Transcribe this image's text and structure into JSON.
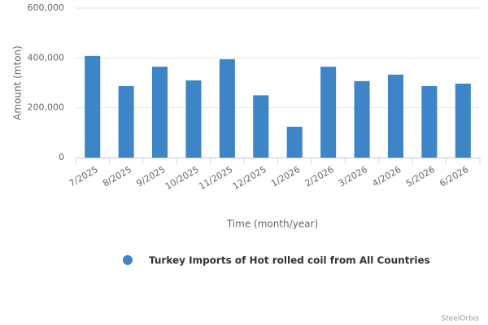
{
  "chart_data": {
    "type": "bar",
    "y_label": "Amount (mton)",
    "x_label": "Time (month/year)",
    "credit": "SteelOrbis",
    "categories": [
      "7/2025",
      "8/2025",
      "9/2025",
      "10/2025",
      "11/2025",
      "12/2025",
      "1/2026",
      "2/2026",
      "3/2026",
      "4/2026",
      "5/2026",
      "6/2026"
    ],
    "series": [
      {
        "name": "Turkey Imports of Hot rolled coil from All Countries",
        "color": "#3d85c6",
        "values": [
          408000,
          287000,
          365000,
          310000,
          395000,
          250000,
          124000,
          365000,
          307000,
          333000,
          287000,
          297000
        ]
      }
    ],
    "ylim": [
      0,
      600000
    ],
    "yticks": [
      0,
      {
        "value": 200000,
        "label": "200,000"
      },
      {
        "value": 400000,
        "label": "400,000"
      },
      {
        "value": 600000,
        "label": "600,000"
      }
    ],
    "grid": true
  }
}
